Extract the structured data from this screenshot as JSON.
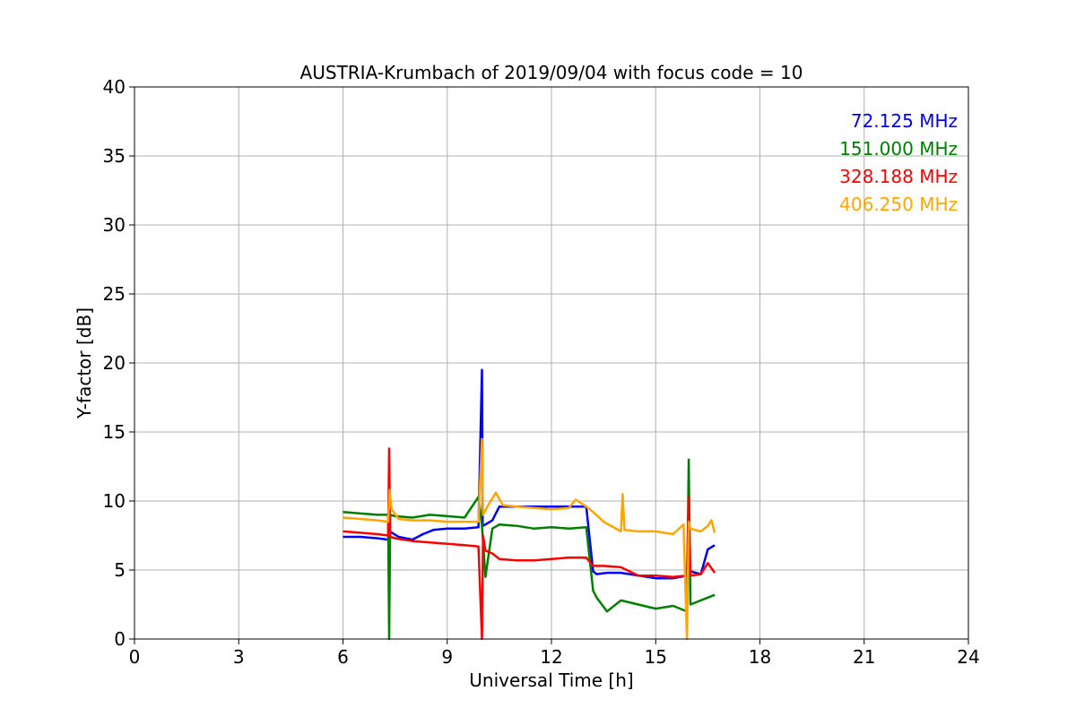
{
  "chart_data": {
    "type": "line",
    "title": "AUSTRIA-Krumbach of 2019/09/04 with focus code = 10",
    "xlabel": "Universal Time [h]",
    "ylabel": "Y-factor [dB]",
    "xlim": [
      0,
      24
    ],
    "ylim": [
      0,
      40
    ],
    "xticks": [
      "0",
      "3",
      "6",
      "9",
      "12",
      "15",
      "18",
      "21",
      "24"
    ],
    "yticks": [
      "0",
      "5",
      "10",
      "15",
      "20",
      "25",
      "30",
      "35",
      "40"
    ],
    "grid": true,
    "legend_position": "top-right",
    "series": [
      {
        "name": "72.125 MHz",
        "color": "#0000ff",
        "x": [
          6.0,
          6.5,
          7.0,
          7.3,
          7.35,
          7.6,
          8.0,
          8.3,
          8.6,
          9.0,
          9.5,
          9.9,
          10.0,
          10.02,
          10.1,
          10.3,
          10.5,
          11.0,
          11.5,
          12.0,
          12.5,
          13.0,
          13.2,
          13.3,
          13.6,
          14.0,
          14.5,
          15.0,
          15.5,
          15.9,
          16.0,
          16.3,
          16.5,
          16.7
        ],
        "y": [
          7.4,
          7.4,
          7.3,
          7.2,
          7.8,
          7.4,
          7.2,
          7.6,
          7.9,
          8.0,
          8.0,
          8.1,
          19.5,
          8.2,
          8.3,
          8.6,
          9.6,
          9.6,
          9.6,
          9.6,
          9.6,
          9.6,
          4.9,
          4.7,
          4.8,
          4.8,
          4.6,
          4.4,
          4.4,
          4.6,
          4.9,
          4.7,
          6.5,
          6.8
        ]
      },
      {
        "name": "151.000 MHz",
        "color": "#008000",
        "x": [
          6.0,
          6.5,
          7.0,
          7.3,
          7.33,
          7.36,
          7.5,
          8.0,
          8.5,
          9.0,
          9.5,
          9.9,
          10.0,
          10.1,
          10.3,
          10.5,
          11.0,
          11.5,
          12.0,
          12.5,
          13.0,
          13.2,
          13.3,
          13.6,
          14.0,
          14.5,
          15.0,
          15.5,
          15.9,
          15.95,
          16.0,
          16.3,
          16.5,
          16.7
        ],
        "y": [
          9.2,
          9.1,
          9.0,
          9.0,
          0.0,
          9.0,
          8.9,
          8.8,
          9.0,
          8.9,
          8.8,
          10.3,
          8.2,
          4.5,
          8.0,
          8.3,
          8.2,
          8.0,
          8.1,
          8.0,
          8.1,
          3.5,
          3.0,
          2.0,
          2.8,
          2.5,
          2.2,
          2.4,
          2.0,
          13.0,
          2.5,
          2.8,
          3.0,
          3.2
        ]
      },
      {
        "name": "328.188 MHz",
        "color": "#ff0000",
        "x": [
          6.0,
          6.5,
          7.0,
          7.3,
          7.33,
          7.36,
          7.5,
          8.0,
          8.5,
          9.0,
          9.5,
          9.9,
          10.0,
          10.03,
          10.1,
          10.3,
          10.5,
          11.0,
          11.5,
          12.0,
          12.5,
          13.0,
          13.2,
          13.5,
          14.0,
          14.5,
          15.0,
          15.5,
          15.9,
          15.95,
          16.0,
          16.3,
          16.5,
          16.7
        ],
        "y": [
          7.8,
          7.7,
          7.6,
          7.5,
          13.8,
          7.4,
          7.3,
          7.1,
          7.0,
          6.9,
          6.8,
          6.7,
          0.0,
          7.5,
          6.4,
          6.2,
          5.8,
          5.7,
          5.7,
          5.8,
          5.9,
          5.9,
          5.3,
          5.3,
          5.2,
          4.6,
          4.6,
          4.5,
          4.6,
          10.3,
          4.6,
          4.7,
          5.5,
          4.8
        ]
      },
      {
        "name": "406.250 MHz",
        "color": "#ffa500",
        "x": [
          6.0,
          6.5,
          7.0,
          7.3,
          7.34,
          7.4,
          7.6,
          8.0,
          8.5,
          9.0,
          9.5,
          9.9,
          10.0,
          10.03,
          10.2,
          10.4,
          10.6,
          11.0,
          11.5,
          12.0,
          12.5,
          12.7,
          13.0,
          13.2,
          13.5,
          14.0,
          14.05,
          14.1,
          14.5,
          15.0,
          15.5,
          15.8,
          15.9,
          15.95,
          16.0,
          16.3,
          16.5,
          16.6,
          16.7
        ],
        "y": [
          8.8,
          8.7,
          8.6,
          8.5,
          10.8,
          9.4,
          8.7,
          8.6,
          8.6,
          8.5,
          8.5,
          8.5,
          14.5,
          9.0,
          9.8,
          10.6,
          9.7,
          9.6,
          9.5,
          9.4,
          9.5,
          10.1,
          9.6,
          9.2,
          8.5,
          7.8,
          10.5,
          7.9,
          7.8,
          7.8,
          7.6,
          8.3,
          0.0,
          8.5,
          8.0,
          7.8,
          8.2,
          8.6,
          7.7
        ]
      }
    ]
  }
}
